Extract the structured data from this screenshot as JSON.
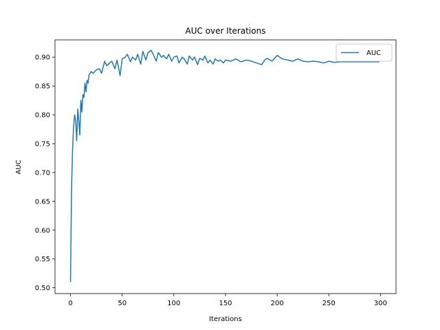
{
  "chart_data": {
    "type": "line",
    "title": "AUC over Iterations",
    "xlabel": "Iterations",
    "ylabel": "AUC",
    "xlim": [
      -15,
      315
    ],
    "ylim": [
      0.49,
      0.93
    ],
    "xticks": [
      0,
      50,
      100,
      150,
      200,
      250,
      300
    ],
    "yticks": [
      0.5,
      0.55,
      0.6,
      0.65,
      0.7,
      0.75,
      0.8,
      0.85,
      0.9
    ],
    "grid": false,
    "legend": "top-right",
    "series": [
      {
        "name": "AUC",
        "color": "#1f77b4",
        "x": [
          0,
          1,
          2,
          3,
          4,
          5,
          6,
          7,
          8,
          9,
          10,
          11,
          12,
          13,
          14,
          15,
          16,
          17,
          18,
          20,
          22,
          25,
          28,
          30,
          33,
          35,
          38,
          40,
          43,
          45,
          48,
          50,
          53,
          55,
          58,
          60,
          63,
          65,
          68,
          70,
          73,
          75,
          78,
          80,
          83,
          85,
          88,
          90,
          93,
          95,
          98,
          100,
          103,
          105,
          108,
          110,
          113,
          115,
          118,
          120,
          123,
          125,
          128,
          130,
          133,
          135,
          138,
          140,
          143,
          145,
          148,
          150,
          155,
          160,
          165,
          170,
          175,
          180,
          185,
          188,
          190,
          195,
          200,
          205,
          210,
          215,
          220,
          225,
          230,
          235,
          240,
          245,
          250,
          255,
          260,
          270,
          280,
          290,
          299
        ],
        "y": [
          0.51,
          0.67,
          0.74,
          0.78,
          0.8,
          0.79,
          0.755,
          0.81,
          0.79,
          0.765,
          0.825,
          0.805,
          0.835,
          0.83,
          0.855,
          0.84,
          0.86,
          0.855,
          0.87,
          0.875,
          0.872,
          0.878,
          0.88,
          0.872,
          0.893,
          0.885,
          0.89,
          0.893,
          0.88,
          0.895,
          0.868,
          0.897,
          0.9,
          0.905,
          0.892,
          0.9,
          0.895,
          0.905,
          0.888,
          0.91,
          0.895,
          0.908,
          0.912,
          0.905,
          0.893,
          0.908,
          0.9,
          0.903,
          0.897,
          0.905,
          0.893,
          0.9,
          0.902,
          0.89,
          0.9,
          0.897,
          0.888,
          0.902,
          0.895,
          0.9,
          0.887,
          0.898,
          0.895,
          0.902,
          0.89,
          0.895,
          0.888,
          0.897,
          0.893,
          0.895,
          0.89,
          0.895,
          0.893,
          0.897,
          0.892,
          0.895,
          0.893,
          0.89,
          0.887,
          0.895,
          0.898,
          0.893,
          0.903,
          0.897,
          0.895,
          0.893,
          0.897,
          0.893,
          0.892,
          0.893,
          0.892,
          0.89,
          0.893,
          0.891,
          0.892,
          0.892,
          0.892,
          0.892,
          0.892
        ]
      }
    ]
  }
}
